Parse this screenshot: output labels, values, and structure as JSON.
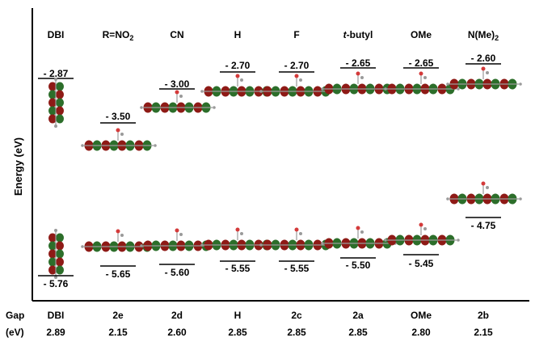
{
  "y_axis_label": "Energy (eV)",
  "columns": [
    {
      "header": "DBI",
      "lumo": "- 2.87",
      "homo": "- 5.76",
      "gap_name": "DBI",
      "gap_value": "2.89"
    },
    {
      "header": "R=NO",
      "header_sub": "2",
      "lumo": "- 3.50",
      "homo": "- 5.65",
      "gap_name": "2e",
      "gap_value": "2.15"
    },
    {
      "header": "CN",
      "lumo": "- 3.00",
      "homo": "- 5.60",
      "gap_name": "2d",
      "gap_value": "2.60"
    },
    {
      "header": "H",
      "lumo": "- 2.70",
      "homo": "- 5.55",
      "gap_name": "H",
      "gap_value": "2.85"
    },
    {
      "header": "F",
      "lumo": "- 2.70",
      "homo": "- 5.55",
      "gap_name": "2c",
      "gap_value": "2.85"
    },
    {
      "header": "t",
      "header_italic_prefix": true,
      "header_rest": "-butyl",
      "lumo": "- 2.65",
      "homo": "- 5.50",
      "gap_name": "2a",
      "gap_value": "2.85"
    },
    {
      "header": "OMe",
      "lumo": "- 2.65",
      "homo": "- 5.45",
      "gap_name": "OMe",
      "gap_value": "2.80"
    },
    {
      "header": "N(Me)",
      "header_sub": "2",
      "lumo": "- 2.60",
      "homo": "- 4.75",
      "gap_name": "2b",
      "gap_value": "2.15"
    }
  ],
  "gap_row_label": "Gap",
  "gap_unit_label": "(eV)",
  "colors": {
    "lobe_red": "#8e1a16",
    "lobe_green": "#2c6e2a",
    "atom_grey": "#9a9a9a",
    "atom_red": "#d43a3a"
  }
}
